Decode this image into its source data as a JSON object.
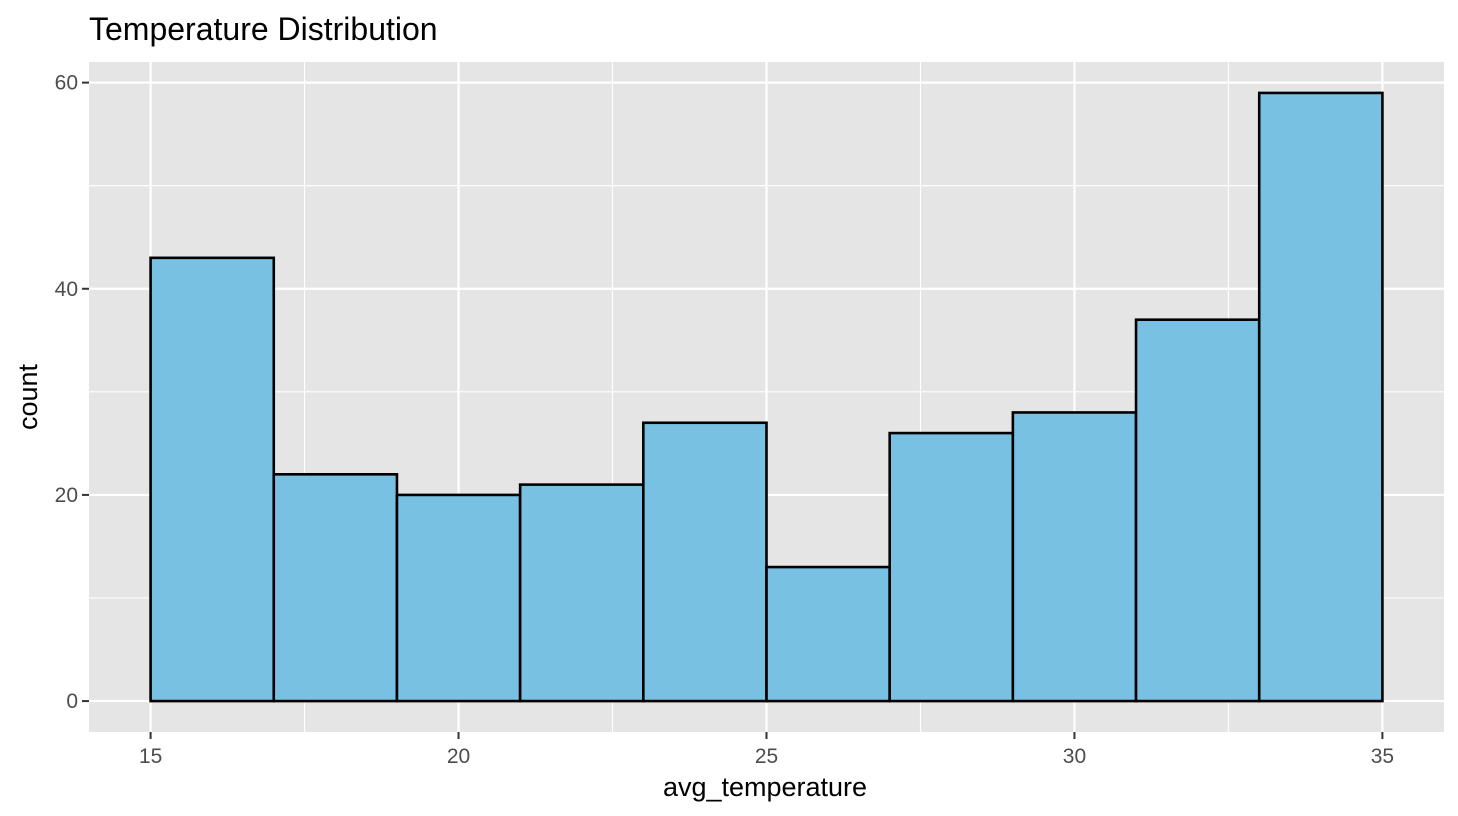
{
  "chart_data": {
    "type": "histogram",
    "title": "Temperature Distribution",
    "xlabel": "avg_temperature",
    "ylabel": "count",
    "xlim": [
      14,
      36
    ],
    "ylim": [
      -3,
      62
    ],
    "x_ticks": [
      15,
      20,
      25,
      30,
      35
    ],
    "y_ticks": [
      0,
      20,
      40,
      60
    ],
    "x_minor_gridlines": [
      17.5,
      22.5,
      27.5,
      32.5
    ],
    "y_minor_gridlines": [
      10,
      30,
      50
    ],
    "bins": [
      {
        "x_start": 15,
        "x_end": 17,
        "count": 43
      },
      {
        "x_start": 17,
        "x_end": 19,
        "count": 22
      },
      {
        "x_start": 19,
        "x_end": 21,
        "count": 20
      },
      {
        "x_start": 21,
        "x_end": 23,
        "count": 21
      },
      {
        "x_start": 23,
        "x_end": 25,
        "count": 27
      },
      {
        "x_start": 25,
        "x_end": 27,
        "count": 13
      },
      {
        "x_start": 27,
        "x_end": 29,
        "count": 26
      },
      {
        "x_start": 29,
        "x_end": 31,
        "count": 28
      },
      {
        "x_start": 31,
        "x_end": 33,
        "count": 37
      },
      {
        "x_start": 33,
        "x_end": 35,
        "count": 59
      }
    ],
    "grid": true,
    "legend": "none",
    "colors": {
      "bar_fill": "#78C1E3",
      "bar_outline": "#000000",
      "panel_background": "#E5E5E5",
      "gridline": "#FFFFFF",
      "tick_label": "#4D4D4D",
      "tick_mark": "#333333"
    }
  }
}
